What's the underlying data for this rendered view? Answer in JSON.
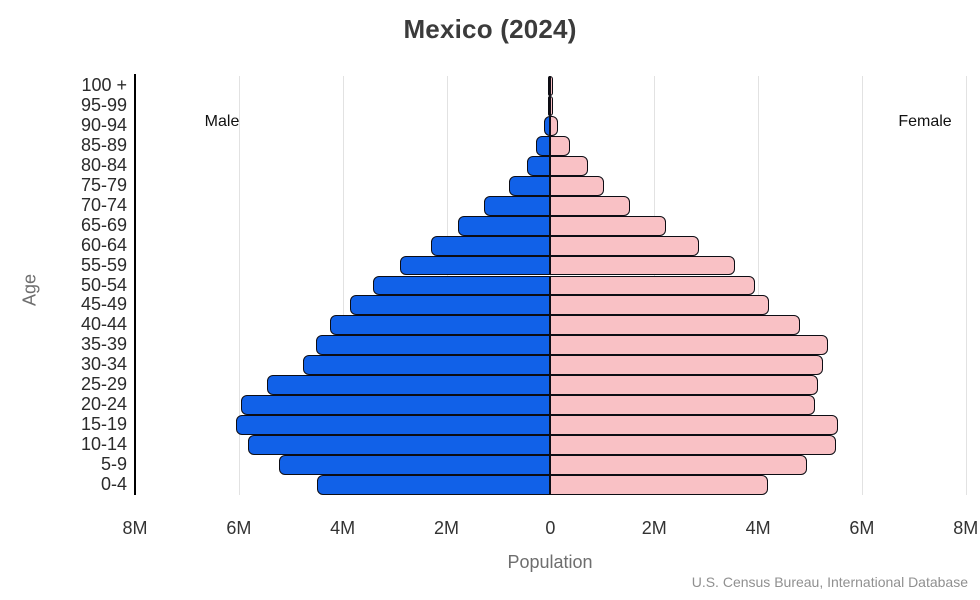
{
  "title": "Mexico (2024)",
  "labels": {
    "male": "Male",
    "female": "Female",
    "age_axis": "Age",
    "population_axis": "Population"
  },
  "source": "U.S. Census Bureau, International Database",
  "colors": {
    "male_fill": "#1161e8",
    "female_fill": "#f9c1c5",
    "bar_border": "#0d0d14",
    "grid": "#e2e2e2",
    "axis": "#000000"
  },
  "chart_data": {
    "type": "bar",
    "subtype": "population_pyramid",
    "title": "Mexico (2024)",
    "xlabel": "Population",
    "ylabel": "Age",
    "unit": "millions of people",
    "grid": true,
    "x_tick_labels": [
      "8M",
      "6M",
      "4M",
      "2M",
      "0",
      "2M",
      "4M",
      "6M",
      "8M"
    ],
    "x_tick_values_millions": [
      -8,
      -6,
      -4,
      -2,
      0,
      2,
      4,
      6,
      8
    ],
    "gridline_values_millions": [
      -6,
      -4,
      -2,
      0,
      2,
      4,
      6,
      8
    ],
    "categories_bottom_to_top": [
      "0-4",
      "5-9",
      "10-14",
      "15-19",
      "20-24",
      "25-29",
      "30-34",
      "35-39",
      "40-44",
      "45-49",
      "50-54",
      "55-59",
      "60-64",
      "65-69",
      "70-74",
      "75-79",
      "80-84",
      "85-89",
      "90-94",
      "95-99",
      "100 +"
    ],
    "series": [
      {
        "name": "Male",
        "side": "left",
        "color": "#1161e8",
        "values_millions": [
          4.5,
          5.23,
          5.83,
          6.06,
          5.96,
          5.46,
          4.76,
          4.52,
          4.24,
          3.87,
          3.41,
          2.89,
          2.31,
          1.78,
          1.28,
          0.79,
          0.45,
          0.27,
          0.12,
          0.03,
          0.01
        ]
      },
      {
        "name": "Female",
        "side": "right",
        "color": "#f9c1c5",
        "values_millions": [
          4.19,
          4.94,
          5.5,
          5.54,
          5.09,
          5.16,
          5.26,
          5.35,
          4.81,
          4.21,
          3.95,
          3.55,
          2.87,
          2.22,
          1.53,
          1.04,
          0.72,
          0.37,
          0.15,
          0.05,
          0.02
        ]
      }
    ],
    "legend": [
      "Male",
      "Female"
    ],
    "source": "U.S. Census Bureau, International Database"
  }
}
